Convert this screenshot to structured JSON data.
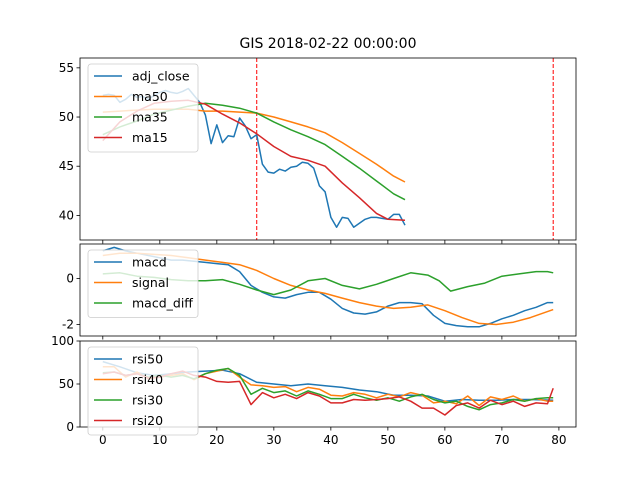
{
  "chart_data": {
    "title": "GIS 2018-02-22 00:00:00",
    "x_ticks": [
      0,
      10,
      20,
      30,
      40,
      50,
      60,
      70,
      80
    ],
    "xlim": [
      -4,
      83
    ],
    "panels": [
      {
        "id": "price",
        "type": "line",
        "ylim": [
          37.5,
          56
        ],
        "y_ticks": [
          40,
          45,
          50,
          55
        ],
        "legend": "upper-left",
        "vlines": [
          27,
          79
        ],
        "series": [
          {
            "name": "adj_close",
            "color": "#1f77b4",
            "x": [
              0,
              1,
              2,
              3,
              4,
              5,
              6,
              7,
              8,
              9,
              10,
              11,
              12,
              13,
              14,
              15,
              16,
              17,
              18,
              19,
              20,
              21,
              22,
              23,
              24,
              25,
              26,
              27,
              28,
              29,
              30,
              31,
              32,
              33,
              34,
              35,
              36,
              37,
              38,
              39,
              40,
              41,
              42,
              43,
              44,
              45,
              46,
              47,
              48,
              49,
              50,
              51,
              52,
              53
            ],
            "y": [
              52.2,
              52.3,
              52.2,
              51.5,
              51.8,
              52.3,
              52.0,
              52.1,
              51.8,
              52.2,
              52.5,
              52.7,
              52.5,
              52.4,
              52.6,
              52.9,
              52.2,
              51.5,
              50.2,
              47.3,
              49.2,
              47.4,
              48.1,
              48.0,
              49.9,
              49.1,
              47.8,
              48.2,
              45.2,
              44.4,
              44.3,
              44.7,
              44.5,
              44.9,
              45.0,
              45.4,
              45.3,
              44.8,
              43.0,
              42.4,
              39.8,
              38.8,
              39.8,
              39.7,
              38.8,
              39.2,
              39.6,
              39.8,
              39.8,
              39.7,
              39.6,
              40.1,
              40.1,
              39.0
            ]
          },
          {
            "name": "ma50",
            "color": "#ff7f0e",
            "x": [
              0,
              3,
              6,
              9,
              12,
              15,
              18,
              21,
              24,
              27,
              30,
              33,
              36,
              39,
              42,
              45,
              48,
              51,
              53
            ],
            "y": [
              50.5,
              50.6,
              50.7,
              50.8,
              50.8,
              50.8,
              50.6,
              50.6,
              50.5,
              50.4,
              50.0,
              49.5,
              49.0,
              48.4,
              47.4,
              46.3,
              45.2,
              44.0,
              43.4
            ]
          },
          {
            "name": "ma35",
            "color": "#2ca02c",
            "x": [
              0,
              3,
              6,
              9,
              12,
              15,
              18,
              21,
              24,
              27,
              30,
              33,
              36,
              39,
              42,
              45,
              48,
              51,
              53
            ],
            "y": [
              48.2,
              49.0,
              49.6,
              50.3,
              50.7,
              51.1,
              51.4,
              51.2,
              50.9,
              50.4,
              49.5,
              48.7,
              48.0,
              47.2,
              46.0,
              44.8,
              43.5,
              42.2,
              41.6
            ]
          },
          {
            "name": "ma15",
            "color": "#d62728",
            "x": [
              0,
              3,
              6,
              9,
              12,
              15,
              18,
              21,
              24,
              27,
              30,
              33,
              36,
              39,
              42,
              45,
              48,
              50,
              53
            ],
            "y": [
              47.6,
              49.5,
              50.6,
              51.4,
              51.6,
              51.7,
              51.3,
              50.3,
              49.4,
              48.3,
              47.0,
              46.0,
              45.6,
              45.0,
              43.3,
              41.8,
              40.2,
              39.6,
              39.5
            ]
          }
        ]
      },
      {
        "id": "macd",
        "type": "line",
        "ylim": [
          -2.5,
          1.5
        ],
        "y_ticks": [
          -2,
          0
        ],
        "legend": "upper-left",
        "series": [
          {
            "name": "macd",
            "color": "#1f77b4",
            "x": [
              0,
              2,
              4,
              6,
              8,
              10,
              12,
              14,
              16,
              18,
              20,
              22,
              24,
              26,
              28,
              30,
              32,
              34,
              36,
              38,
              40,
              42,
              44,
              46,
              48,
              50,
              52,
              54,
              56,
              58,
              60,
              62,
              64,
              66,
              68,
              70,
              72,
              74,
              76,
              78,
              79
            ],
            "y": [
              1.2,
              1.35,
              1.2,
              1.1,
              1.0,
              0.9,
              0.8,
              0.8,
              0.75,
              0.7,
              0.65,
              0.6,
              0.3,
              -0.3,
              -0.6,
              -0.8,
              -0.85,
              -0.7,
              -0.6,
              -0.6,
              -0.9,
              -1.3,
              -1.5,
              -1.55,
              -1.45,
              -1.2,
              -1.05,
              -1.05,
              -1.1,
              -1.6,
              -1.95,
              -2.05,
              -2.1,
              -2.1,
              -1.95,
              -1.75,
              -1.6,
              -1.4,
              -1.25,
              -1.05,
              -1.05
            ]
          },
          {
            "name": "signal",
            "color": "#ff7f0e",
            "x": [
              0,
              3,
              6,
              9,
              12,
              15,
              18,
              21,
              24,
              27,
              30,
              33,
              36,
              39,
              42,
              45,
              48,
              51,
              54,
              57,
              60,
              63,
              66,
              69,
              72,
              75,
              79
            ],
            "y": [
              1.0,
              1.1,
              1.1,
              1.05,
              1.0,
              0.9,
              0.8,
              0.7,
              0.6,
              0.35,
              0.0,
              -0.3,
              -0.5,
              -0.65,
              -0.85,
              -1.05,
              -1.2,
              -1.3,
              -1.25,
              -1.15,
              -1.4,
              -1.7,
              -1.95,
              -2.0,
              -1.9,
              -1.7,
              -1.35
            ]
          },
          {
            "name": "macd_diff",
            "color": "#2ca02c",
            "x": [
              0,
              3,
              6,
              9,
              12,
              15,
              18,
              21,
              24,
              27,
              30,
              33,
              36,
              39,
              42,
              45,
              48,
              51,
              54,
              57,
              59,
              61,
              64,
              67,
              70,
              73,
              76,
              78,
              79
            ],
            "y": [
              0.2,
              0.25,
              0.1,
              0.05,
              -0.05,
              -0.1,
              -0.1,
              -0.05,
              -0.25,
              -0.5,
              -0.7,
              -0.5,
              -0.1,
              0.0,
              -0.3,
              -0.45,
              -0.25,
              0.0,
              0.25,
              0.15,
              -0.1,
              -0.55,
              -0.35,
              -0.2,
              0.1,
              0.2,
              0.3,
              0.3,
              0.25
            ]
          }
        ]
      },
      {
        "id": "rsi",
        "type": "line",
        "ylim": [
          0,
          100
        ],
        "y_ticks": [
          0,
          50,
          100
        ],
        "legend": "upper-left",
        "series": [
          {
            "name": "rsi50",
            "color": "#1f77b4",
            "x": [
              0,
              3,
              6,
              9,
              12,
              15,
              18,
              21,
              24,
              27,
              30,
              33,
              36,
              39,
              42,
              45,
              48,
              51,
              54,
              57,
              60,
              63,
              66,
              69,
              72,
              75,
              79
            ],
            "y": [
              76,
              70,
              63,
              60,
              62,
              64,
              65,
              66,
              62,
              52,
              50,
              48,
              50,
              48,
              46,
              43,
              41,
              37,
              37,
              36,
              30,
              32,
              31,
              31,
              32,
              32,
              31
            ]
          },
          {
            "name": "rsi40",
            "color": "#ff7f0e",
            "x": [
              0,
              2,
              4,
              6,
              8,
              10,
              12,
              14,
              16,
              18,
              20,
              22,
              24,
              26,
              28,
              30,
              32,
              34,
              36,
              38,
              40,
              42,
              44,
              46,
              48,
              50,
              52,
              54,
              56,
              58,
              60,
              62,
              64,
              66,
              68,
              70,
              72,
              74,
              76,
              78,
              79
            ],
            "y": [
              70,
              70,
              58,
              64,
              56,
              58,
              60,
              62,
              55,
              62,
              65,
              68,
              58,
              49,
              48,
              46,
              47,
              41,
              46,
              44,
              37,
              36,
              40,
              38,
              34,
              38,
              35,
              40,
              37,
              28,
              30,
              27,
              36,
              25,
              35,
              32,
              36,
              30,
              33,
              30,
              30
            ]
          },
          {
            "name": "rsi30",
            "color": "#2ca02c",
            "x": [
              0,
              2,
              4,
              6,
              8,
              10,
              12,
              14,
              16,
              18,
              20,
              22,
              24,
              26,
              28,
              30,
              32,
              34,
              36,
              38,
              40,
              42,
              44,
              46,
              48,
              50,
              52,
              54,
              56,
              58,
              60,
              62,
              64,
              66,
              68,
              70,
              72,
              74,
              76,
              78,
              79
            ],
            "y": [
              63,
              64,
              60,
              62,
              58,
              60,
              58,
              60,
              56,
              62,
              66,
              68,
              60,
              38,
              45,
              40,
              42,
              36,
              42,
              38,
              33,
              33,
              38,
              34,
              31,
              34,
              30,
              35,
              38,
              32,
              28,
              30,
              24,
              20,
              26,
              28,
              32,
              30,
              33,
              34,
              34
            ]
          },
          {
            "name": "rsi20",
            "color": "#d62728",
            "x": [
              0,
              2,
              4,
              6,
              8,
              10,
              12,
              14,
              16,
              18,
              20,
              22,
              24,
              26,
              28,
              30,
              32,
              34,
              36,
              38,
              40,
              42,
              44,
              46,
              48,
              50,
              52,
              54,
              56,
              58,
              60,
              62,
              64,
              66,
              68,
              70,
              72,
              74,
              76,
              78,
              79
            ],
            "y": [
              62,
              64,
              60,
              62,
              57,
              58,
              62,
              65,
              60,
              58,
              53,
              52,
              53,
              26,
              40,
              34,
              38,
              33,
              40,
              36,
              28,
              28,
              32,
              31,
              32,
              33,
              35,
              30,
              22,
              22,
              14,
              25,
              28,
              22,
              31,
              26,
              30,
              24,
              28,
              27,
              45
            ]
          }
        ]
      }
    ]
  }
}
